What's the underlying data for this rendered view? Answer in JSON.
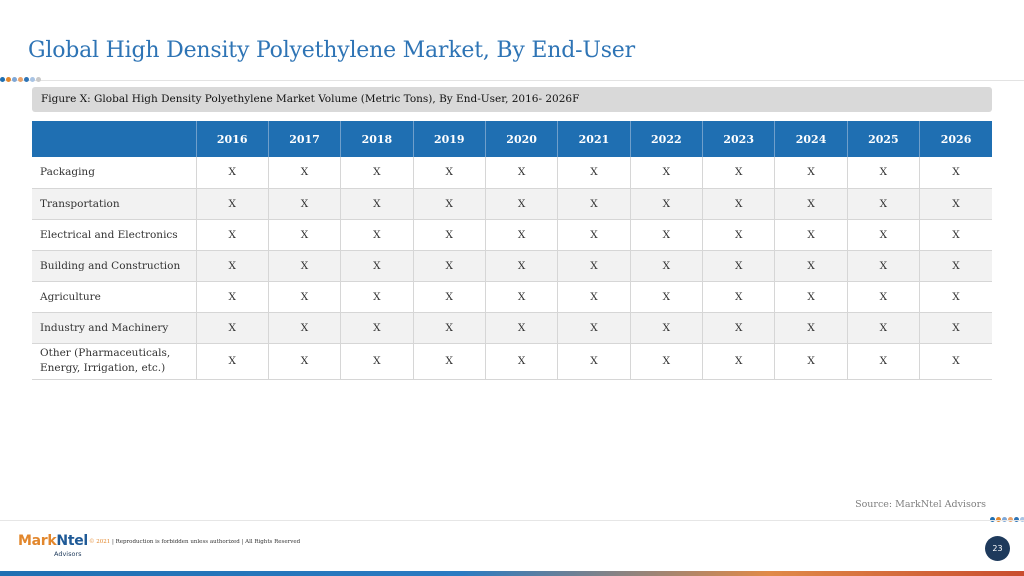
{
  "slide": {
    "title": "Global High Density Polyethylene Market, By End-User",
    "figure_caption": "Figure X: Global High Density Polyethylene Market Volume (Metric Tons), By End-User, 2016- 2026F",
    "source": "Source: MarkNtel Advisors",
    "page_number": "23"
  },
  "table": {
    "corner": "",
    "years": [
      "2016",
      "2017",
      "2018",
      "2019",
      "2020",
      "2021",
      "2022",
      "2023",
      "2024",
      "2025",
      "2026"
    ],
    "rows": [
      {
        "label": "Packaging",
        "values": [
          "X",
          "X",
          "X",
          "X",
          "X",
          "X",
          "X",
          "X",
          "X",
          "X",
          "X"
        ]
      },
      {
        "label": "Transportation",
        "values": [
          "X",
          "X",
          "X",
          "X",
          "X",
          "X",
          "X",
          "X",
          "X",
          "X",
          "X"
        ]
      },
      {
        "label": "Electrical and Electronics",
        "values": [
          "X",
          "X",
          "X",
          "X",
          "X",
          "X",
          "X",
          "X",
          "X",
          "X",
          "X"
        ]
      },
      {
        "label": "Building and Construction",
        "values": [
          "X",
          "X",
          "X",
          "X",
          "X",
          "X",
          "X",
          "X",
          "X",
          "X",
          "X"
        ]
      },
      {
        "label": "Agriculture",
        "values": [
          "X",
          "X",
          "X",
          "X",
          "X",
          "X",
          "X",
          "X",
          "X",
          "X",
          "X"
        ]
      },
      {
        "label": "Industry and Machinery",
        "values": [
          "X",
          "X",
          "X",
          "X",
          "X",
          "X",
          "X",
          "X",
          "X",
          "X",
          "X"
        ]
      },
      {
        "label": "Other (Pharmaceuticals, Energy, Irrigation, etc.)",
        "values": [
          "X",
          "X",
          "X",
          "X",
          "X",
          "X",
          "X",
          "X",
          "X",
          "X",
          "X"
        ]
      }
    ]
  },
  "footer": {
    "logo_mark": "Mark",
    "logo_ntel": "Ntel",
    "logo_sub": "Advisors",
    "copyright_year": "© 2021",
    "copyright_text": " | Reproduction is forbidden unless authorized | All Rights Reserved"
  },
  "colors": {
    "title": "#2e74b5",
    "table_header": "#1f6fb2",
    "dots": [
      "#1f6fb2",
      "#e2872d",
      "#7fa7d6",
      "#e9a36b",
      "#2e74b5",
      "#a9c4e4",
      "#c9c9c9"
    ]
  }
}
